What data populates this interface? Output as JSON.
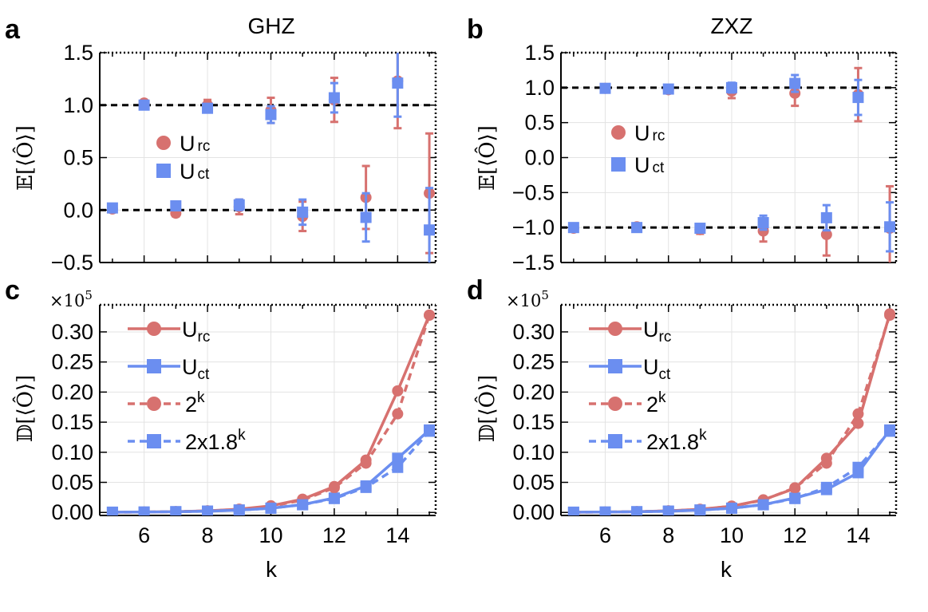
{
  "colors": {
    "red": "#d7716f",
    "blue": "#6b8ef0",
    "ref": "#000000"
  },
  "chart_data": [
    {
      "panel": "a",
      "type": "scatter",
      "title": "GHZ",
      "ylabel": "𝔼[⟨Ô⟩]",
      "xlim": [
        4.6,
        15.2
      ],
      "ylim": [
        -0.5,
        1.5
      ],
      "yticks": [
        "−0.5",
        "0.0",
        "0.5",
        "1.0",
        "1.5"
      ],
      "yvals": [
        -0.5,
        0.0,
        0.5,
        1.0,
        1.5
      ],
      "xticks": [
        6,
        8,
        10,
        12,
        14
      ],
      "xticklabels": [],
      "reference_lines": [
        1.0,
        0.0
      ],
      "legend": {
        "placement": "left-middle"
      },
      "series": [
        {
          "name": "U",
          "sub": "rc",
          "marker": "circle",
          "color": "red",
          "x": [
            5,
            6,
            7,
            8,
            9,
            10,
            11,
            12,
            13,
            14,
            15
          ],
          "y": [
            0.01,
            1.02,
            -0.03,
            1.0,
            0.03,
            0.95,
            -0.06,
            1.05,
            0.12,
            1.23,
            0.16
          ],
          "err": [
            0.02,
            0.02,
            0.03,
            0.05,
            0.07,
            0.12,
            0.14,
            0.21,
            0.3,
            0.45,
            0.57
          ]
        },
        {
          "name": "U",
          "sub": "ct",
          "marker": "square",
          "color": "blue",
          "x": [
            5,
            6,
            7,
            8,
            9,
            10,
            11,
            12,
            13,
            14,
            15
          ],
          "y": [
            0.02,
            1.0,
            0.04,
            0.97,
            0.05,
            0.91,
            -0.02,
            1.07,
            -0.07,
            1.21,
            -0.19
          ],
          "err": [
            0.02,
            0.03,
            0.03,
            0.04,
            0.05,
            0.08,
            0.12,
            0.14,
            0.23,
            0.32,
            0.4
          ]
        }
      ]
    },
    {
      "panel": "b",
      "type": "scatter",
      "title": "ZXZ",
      "ylabel": "𝔼[⟨Ô⟩]",
      "xlim": [
        4.6,
        15.2
      ],
      "ylim": [
        -1.5,
        1.5
      ],
      "yticks": [
        "−1.5",
        "−1.0",
        "−0.5",
        "0.0",
        "0.5",
        "1.0",
        "1.5"
      ],
      "yvals": [
        -1.5,
        -1.0,
        -0.5,
        0.0,
        0.5,
        1.0,
        1.5
      ],
      "xticks": [
        6,
        8,
        10,
        12,
        14
      ],
      "xticklabels": [],
      "reference_lines": [
        1.0,
        -1.0
      ],
      "legend": {
        "placement": "center"
      },
      "series": [
        {
          "name": "U",
          "sub": "rc",
          "marker": "circle",
          "color": "red",
          "x": [
            5,
            6,
            7,
            8,
            9,
            10,
            11,
            12,
            13,
            14,
            15
          ],
          "y": [
            -1.01,
            0.99,
            -0.99,
            0.97,
            -1.03,
            0.95,
            -1.05,
            0.92,
            -1.1,
            0.9,
            -1.01
          ],
          "err": [
            0.02,
            0.02,
            0.03,
            0.05,
            0.06,
            0.1,
            0.15,
            0.18,
            0.3,
            0.38,
            0.6
          ]
        },
        {
          "name": "U",
          "sub": "ct",
          "marker": "square",
          "color": "blue",
          "x": [
            5,
            6,
            7,
            8,
            9,
            10,
            11,
            12,
            13,
            14,
            15
          ],
          "y": [
            -1.0,
            0.99,
            -1.0,
            0.98,
            -1.01,
            1.0,
            -0.93,
            1.06,
            -0.86,
            0.86,
            -0.99
          ],
          "err": [
            0.02,
            0.02,
            0.03,
            0.04,
            0.05,
            0.07,
            0.1,
            0.12,
            0.18,
            0.25,
            0.35
          ]
        }
      ]
    },
    {
      "panel": "c",
      "type": "line",
      "ylabel": "𝔻[⟨Ô⟩]",
      "xlabel": "k",
      "multiplier": "×10",
      "multiplier_exp": "5",
      "xlim": [
        4.6,
        15.2
      ],
      "ylim": [
        -0.005,
        0.345
      ],
      "yticks": [
        "0.00",
        "0.05",
        "0.10",
        "0.15",
        "0.20",
        "0.25",
        "0.30"
      ],
      "yvals": [
        0.0,
        0.05,
        0.1,
        0.15,
        0.2,
        0.25,
        0.3
      ],
      "xticks": [
        6,
        8,
        10,
        12,
        14
      ],
      "xticklabels": [
        "6",
        "8",
        "10",
        "12",
        "14"
      ],
      "legend": {
        "placement": "top-left"
      },
      "series": [
        {
          "name": "U",
          "sub": "rc",
          "marker": "circle",
          "color": "red",
          "dashed": false,
          "x": [
            5,
            6,
            7,
            8,
            9,
            10,
            11,
            12,
            13,
            14,
            15
          ],
          "y": [
            0.0003,
            0.0006,
            0.0013,
            0.0026,
            0.0055,
            0.011,
            0.022,
            0.043,
            0.087,
            0.202,
            0.328
          ]
        },
        {
          "name": "U",
          "sub": "ct",
          "marker": "square",
          "color": "blue",
          "dashed": false,
          "x": [
            5,
            6,
            7,
            8,
            9,
            10,
            11,
            12,
            13,
            14,
            15
          ],
          "y": [
            0.0004,
            0.0006,
            0.0012,
            0.002,
            0.004,
            0.007,
            0.013,
            0.024,
            0.044,
            0.09,
            0.137
          ]
        },
        {
          "name": "2",
          "sup": "k",
          "marker": "circle",
          "color": "red",
          "dashed": true,
          "x": [
            5,
            6,
            7,
            8,
            9,
            10,
            11,
            12,
            13,
            14,
            15
          ],
          "y": [
            0.00032,
            0.00064,
            0.00128,
            0.00256,
            0.00512,
            0.01024,
            0.02048,
            0.04096,
            0.08192,
            0.16384,
            0.32768
          ]
        },
        {
          "name": "2x1.8",
          "sup": "k",
          "marker": "square",
          "color": "blue",
          "dashed": true,
          "x": [
            5,
            6,
            7,
            8,
            9,
            10,
            11,
            12,
            13,
            14,
            15
          ],
          "y": [
            0.00038,
            0.00068,
            0.00122,
            0.0022,
            0.004,
            0.0071,
            0.0128,
            0.0231,
            0.0416,
            0.0749,
            0.1349
          ]
        }
      ]
    },
    {
      "panel": "d",
      "type": "line",
      "ylabel": "𝔻[⟨Ô⟩]",
      "xlabel": "k",
      "multiplier": "×10",
      "multiplier_exp": "5",
      "xlim": [
        4.6,
        15.2
      ],
      "ylim": [
        -0.005,
        0.345
      ],
      "yticks": [
        "0.00",
        "0.05",
        "0.10",
        "0.15",
        "0.20",
        "0.25",
        "0.30"
      ],
      "yvals": [
        0.0,
        0.05,
        0.1,
        0.15,
        0.2,
        0.25,
        0.3
      ],
      "xticks": [
        6,
        8,
        10,
        12,
        14
      ],
      "xticklabels": [
        "6",
        "8",
        "10",
        "12",
        "14"
      ],
      "legend": {
        "placement": "top-left"
      },
      "series": [
        {
          "name": "U",
          "sub": "rc",
          "marker": "circle",
          "color": "red",
          "dashed": false,
          "x": [
            5,
            6,
            7,
            8,
            9,
            10,
            11,
            12,
            13,
            14,
            15
          ],
          "y": [
            0.0003,
            0.0006,
            0.0013,
            0.0027,
            0.0053,
            0.0105,
            0.021,
            0.04,
            0.09,
            0.148,
            0.33
          ]
        },
        {
          "name": "U",
          "sub": "ct",
          "marker": "square",
          "color": "blue",
          "dashed": false,
          "x": [
            5,
            6,
            7,
            8,
            9,
            10,
            11,
            12,
            13,
            14,
            15
          ],
          "y": [
            0.0004,
            0.0006,
            0.0012,
            0.002,
            0.004,
            0.007,
            0.013,
            0.024,
            0.038,
            0.066,
            0.137
          ]
        },
        {
          "name": "2",
          "sup": "k",
          "marker": "circle",
          "color": "red",
          "dashed": true,
          "x": [
            5,
            6,
            7,
            8,
            9,
            10,
            11,
            12,
            13,
            14,
            15
          ],
          "y": [
            0.00032,
            0.00064,
            0.00128,
            0.00256,
            0.00512,
            0.01024,
            0.02048,
            0.04096,
            0.08192,
            0.16384,
            0.32768
          ]
        },
        {
          "name": "2x1.8",
          "sup": "k",
          "marker": "square",
          "color": "blue",
          "dashed": true,
          "x": [
            5,
            6,
            7,
            8,
            9,
            10,
            11,
            12,
            13,
            14,
            15
          ],
          "y": [
            0.00038,
            0.00068,
            0.00122,
            0.0022,
            0.004,
            0.0071,
            0.0128,
            0.0231,
            0.0416,
            0.0749,
            0.1349
          ]
        }
      ]
    }
  ]
}
